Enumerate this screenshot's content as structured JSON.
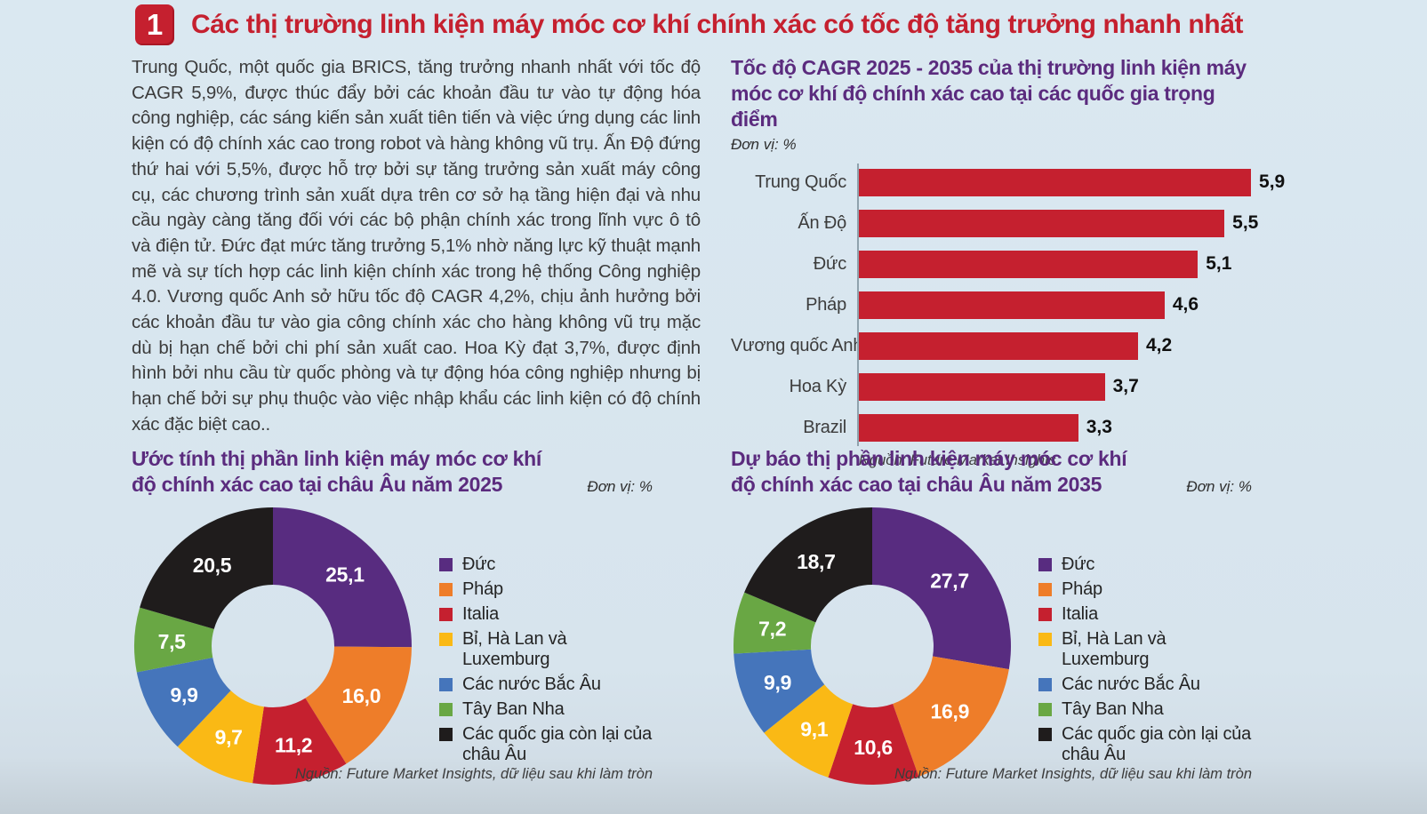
{
  "header": {
    "badge": "1",
    "title": "Các thị trường linh kiện máy móc cơ khí chính xác có tốc độ tăng trưởng nhanh nhất"
  },
  "intro": {
    "text": "Trung Quốc, một quốc gia BRICS, tăng trưởng nhanh nhất với tốc độ CAGR 5,9%, được thúc đẩy bởi các khoản đầu tư vào tự động hóa công nghiệp, các sáng kiến sản xuất tiên tiến và việc ứng dụng các linh kiện có độ chính xác cao trong robot và hàng không vũ trụ. Ấn Độ đứng thứ hai với 5,5%, được hỗ trợ bởi sự tăng trưởng sản xuất máy công cụ, các chương trình sản xuất dựa trên cơ sở hạ tầng hiện đại và nhu cầu ngày càng tăng đối với các bộ phận chính xác trong lĩnh vực ô tô và điện tử. Đức đạt mức tăng trưởng 5,1% nhờ năng lực kỹ thuật mạnh mẽ và sự tích hợp các linh kiện chính xác trong hệ thống Công nghiệp 4.0. Vương quốc Anh sở hữu tốc độ CAGR 4,2%, chịu ảnh hưởng bởi các khoản đầu tư vào gia công chính xác cho hàng không vũ trụ mặc dù bị hạn chế bởi chi phí sản xuất cao. Hoa Kỳ đạt 3,7%, được định hình bởi nhu cầu từ quốc phòng và tự động hóa công nghiệp nhưng bị hạn chế bởi sự phụ thuộc vào việc nhập khẩu các linh kiện có độ chính xác đặc biệt cao.."
  },
  "colors": {
    "accent_red": "#c5202f",
    "title_purple": "#5b2b7e",
    "background_blue": "#d7e4ed"
  },
  "chart_data": [
    {
      "type": "bar",
      "orientation": "horizontal",
      "title": "Tốc độ CAGR 2025 - 2035 của thị trường linh kiện máy móc cơ khí độ chính xác cao tại các quốc gia trọng điểm",
      "unit_label": "Đơn vị: %",
      "categories": [
        "Trung Quốc",
        "Ấn Độ",
        "Đức",
        "Pháp",
        "Vương quốc Anh",
        "Hoa Kỳ",
        "Brazil"
      ],
      "values": [
        5.9,
        5.5,
        5.1,
        4.6,
        4.2,
        3.7,
        3.3
      ],
      "value_labels": [
        "5,9",
        "5,5",
        "5,1",
        "4,6",
        "4,2",
        "3,7",
        "3,3"
      ],
      "bar_color": "#c5202f",
      "xlim": [
        0,
        6.1
      ],
      "grid": false,
      "source": "Nguồn: Future Market Insights"
    },
    {
      "type": "pie",
      "subtype": "donut",
      "title": "Ước tính thị phần linh kiện máy móc cơ khí độ chính xác cao tại châu Âu năm 2025",
      "unit_label": "Đơn vị: %",
      "legend_position": "right",
      "slices": [
        {
          "label": "Đức",
          "value": 25.1,
          "value_label": "25,1",
          "color": "#582c80"
        },
        {
          "label": "Pháp",
          "value": 16.0,
          "value_label": "16,0",
          "color": "#ee7d29"
        },
        {
          "label": "Italia",
          "value": 11.2,
          "value_label": "11,2",
          "color": "#c5202f"
        },
        {
          "label": "Bỉ, Hà Lan và Luxemburg",
          "value": 9.7,
          "value_label": "9,7",
          "color": "#fab915"
        },
        {
          "label": "Các nước Bắc Âu",
          "value": 9.9,
          "value_label": "9,9",
          "color": "#4575bb"
        },
        {
          "label": "Tây Ban Nha",
          "value": 7.5,
          "value_label": "7,5",
          "color": "#69a744"
        },
        {
          "label": "Các quốc gia còn lại của châu Âu",
          "value": 20.5,
          "value_label": "20,5",
          "color": "#1f1c1c"
        }
      ],
      "source": "Nguồn: Future Market Insights, dữ liệu sau khi làm tròn"
    },
    {
      "type": "pie",
      "subtype": "donut",
      "title": "Dự báo thị phần linh kiện máy móc cơ khí độ chính xác cao tại châu Âu năm 2035",
      "unit_label": "Đơn vị: %",
      "legend_position": "right",
      "slices": [
        {
          "label": "Đức",
          "value": 27.7,
          "value_label": "27,7",
          "color": "#582c80"
        },
        {
          "label": "Pháp",
          "value": 16.9,
          "value_label": "16,9",
          "color": "#ee7d29"
        },
        {
          "label": "Italia",
          "value": 10.6,
          "value_label": "10,6",
          "color": "#c5202f"
        },
        {
          "label": "Bỉ, Hà Lan và Luxemburg",
          "value": 9.1,
          "value_label": "9,1",
          "color": "#fab915"
        },
        {
          "label": "Các nước Bắc Âu",
          "value": 9.9,
          "value_label": "9,9",
          "color": "#4575bb"
        },
        {
          "label": "Tây Ban Nha",
          "value": 7.2,
          "value_label": "7,2",
          "color": "#69a744"
        },
        {
          "label": "Các quốc gia còn lại của châu Âu",
          "value": 18.7,
          "value_label": "18,7",
          "color": "#1f1c1c"
        }
      ],
      "source": "Nguồn: Future Market Insights, dữ liệu sau khi làm tròn"
    }
  ]
}
